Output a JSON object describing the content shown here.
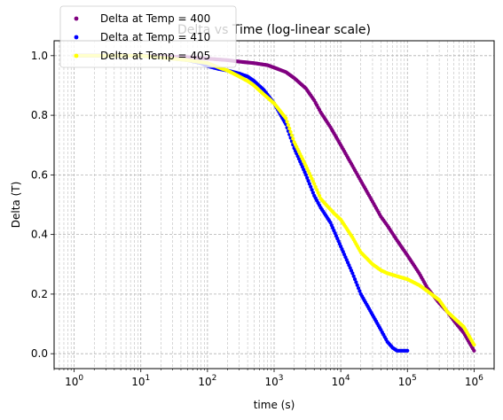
{
  "chart_data": {
    "type": "scatter",
    "title": "Delta vs Time (log-linear scale)",
    "xlabel": "time (s)",
    "ylabel": "Delta (T)",
    "xscale": "log",
    "xlim": [
      0.5,
      2000000
    ],
    "ylim": [
      -0.05,
      1.05
    ],
    "xticks": [
      1,
      10,
      100,
      1000,
      10000,
      100000,
      1000000
    ],
    "xtick_labels": [
      [
        "10",
        "0"
      ],
      [
        "10",
        "1"
      ],
      [
        "10",
        "2"
      ],
      [
        "10",
        "3"
      ],
      [
        "10",
        "4"
      ],
      [
        "10",
        "5"
      ],
      [
        "10",
        "6"
      ]
    ],
    "yticks": [
      0.0,
      0.2,
      0.4,
      0.6,
      0.8,
      1.0
    ],
    "ytick_labels": [
      "0.0",
      "0.2",
      "0.4",
      "0.6",
      "0.8",
      "1.0"
    ],
    "grid": "both-major-minor-dashed",
    "legend_placement": "upper-left",
    "series": [
      {
        "name": "Delta at Temp = 400",
        "color": "#800080",
        "x": [
          1,
          10,
          50,
          100,
          200,
          300,
          500,
          800,
          1000,
          1500,
          2000,
          3000,
          4000,
          5000,
          7000,
          10000,
          15000,
          20000,
          30000,
          40000,
          50000,
          70000,
          100000,
          150000,
          200000,
          300000,
          400000,
          500000,
          700000,
          1000000
        ],
        "y": [
          1.0,
          1.0,
          0.995,
          0.99,
          0.985,
          0.98,
          0.975,
          0.968,
          0.96,
          0.945,
          0.925,
          0.89,
          0.85,
          0.81,
          0.76,
          0.7,
          0.63,
          0.58,
          0.51,
          0.46,
          0.43,
          0.38,
          0.33,
          0.27,
          0.22,
          0.17,
          0.14,
          0.11,
          0.07,
          0.01
        ]
      },
      {
        "name": "Delta at Temp = 410",
        "color": "#0000ff",
        "x": [
          1,
          10,
          30,
          50,
          80,
          100,
          150,
          200,
          300,
          400,
          500,
          700,
          1000,
          1500,
          2000,
          3000,
          4000,
          5000,
          7000,
          10000,
          15000,
          20000,
          30000,
          40000,
          50000,
          60000,
          70000,
          80000,
          100000
        ],
        "y": [
          1.0,
          1.0,
          0.99,
          0.985,
          0.975,
          0.965,
          0.955,
          0.95,
          0.94,
          0.93,
          0.915,
          0.885,
          0.84,
          0.77,
          0.69,
          0.6,
          0.53,
          0.49,
          0.44,
          0.36,
          0.27,
          0.2,
          0.13,
          0.08,
          0.04,
          0.02,
          0.01,
          0.01,
          0.01
        ]
      },
      {
        "name": "Delta at Temp = 405",
        "color": "#ffff00",
        "x": [
          1,
          10,
          50,
          100,
          150,
          200,
          300,
          400,
          500,
          700,
          1000,
          1500,
          2000,
          3000,
          4000,
          5000,
          6000,
          8000,
          10000,
          15000,
          20000,
          30000,
          40000,
          50000,
          70000,
          100000,
          150000,
          200000,
          300000,
          400000,
          500000,
          700000,
          1000000
        ],
        "y": [
          1.0,
          1.0,
          0.985,
          0.975,
          0.96,
          0.95,
          0.93,
          0.915,
          0.9,
          0.87,
          0.84,
          0.79,
          0.71,
          0.63,
          0.57,
          0.52,
          0.5,
          0.47,
          0.45,
          0.39,
          0.34,
          0.3,
          0.28,
          0.27,
          0.26,
          0.25,
          0.23,
          0.21,
          0.18,
          0.14,
          0.12,
          0.09,
          0.03
        ]
      }
    ]
  }
}
